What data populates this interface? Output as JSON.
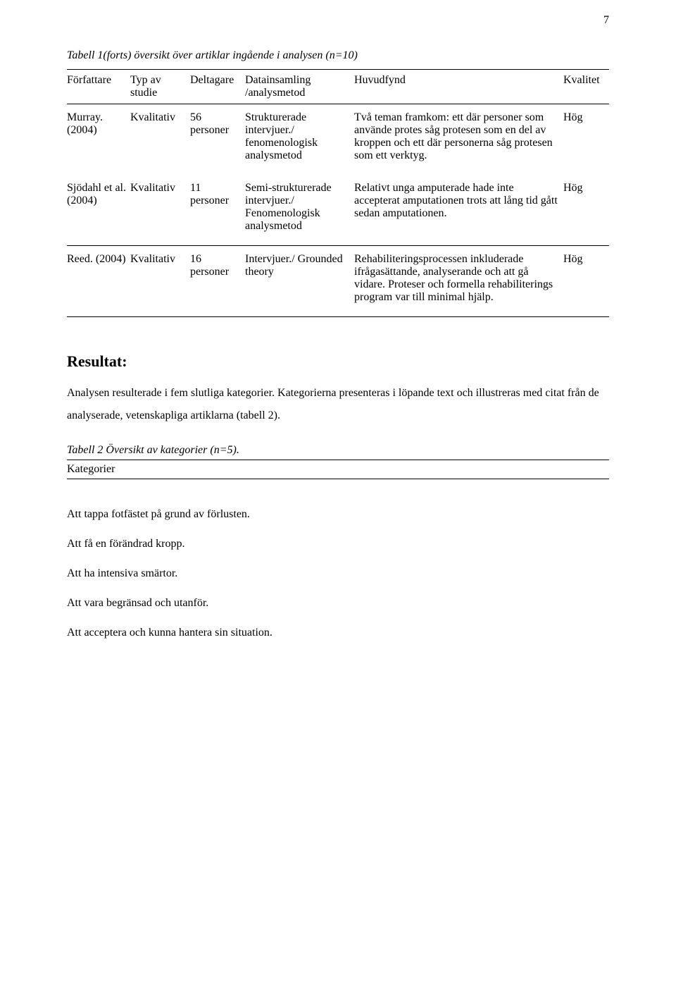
{
  "page_number": "7",
  "table1": {
    "type": "table",
    "caption": "Tabell 1(forts) översikt över artiklar ingående i analysen (n=10)",
    "columns": [
      "Författare",
      "Typ av studie",
      "Deltagare",
      "Datainsamling /analysmetod",
      "Huvudfynd",
      "Kvalitet"
    ],
    "rows": [
      {
        "author": "Murray. (2004)",
        "type": "Kvalitativ",
        "participants": "56 personer",
        "method": "Strukturerade intervjuer./ fenomenologisk analysmetod",
        "findings": "Två teman framkom: ett där personer som använde protes såg protesen som en del av kroppen och ett där personerna såg protesen som ett verktyg.",
        "quality": "Hög"
      },
      {
        "author": "Sjödahl et al. (2004)",
        "type": "Kvalitativ",
        "participants": "11 personer",
        "method": "Semi-strukturerade intervjuer./ Fenomenologisk analysmetod",
        "findings": "Relativt unga amputerade hade inte accepterat amputationen trots att lång tid gått sedan amputationen.",
        "quality": "Hög"
      },
      {
        "author": "Reed. (2004)",
        "type": "Kvalitativ",
        "participants": "16 personer",
        "method": "Intervjuer./ Grounded theory",
        "findings": "Rehabiliteringsprocessen inkluderade ifrågasättande, analyserande och att gå vidare. Proteser och formella rehabiliterings program var till minimal hjälp.",
        "quality": "Hög"
      }
    ]
  },
  "resultat": {
    "heading": "Resultat:",
    "intro": "Analysen resulterade i fem slutliga kategorier. Kategorierna presenteras i löpande text och illustreras med citat från de analyserade, vetenskapliga artiklarna (tabell 2)."
  },
  "table2": {
    "type": "table",
    "caption": "Tabell 2 Översikt av kategorier (n=5).",
    "header": "Kategorier",
    "rows": [
      "Att tappa fotfästet på grund av förlusten.",
      "Att få en förändrad kropp.",
      "Att ha intensiva smärtor.",
      "Att vara begränsad och utanför.",
      "Att acceptera och kunna hantera sin situation."
    ]
  },
  "colors": {
    "text": "#000000",
    "background": "#ffffff",
    "border": "#000000"
  },
  "typography": {
    "body_font": "Times New Roman",
    "body_size_pt": 12,
    "heading_size_pt": 16,
    "line_height_body": 2
  }
}
